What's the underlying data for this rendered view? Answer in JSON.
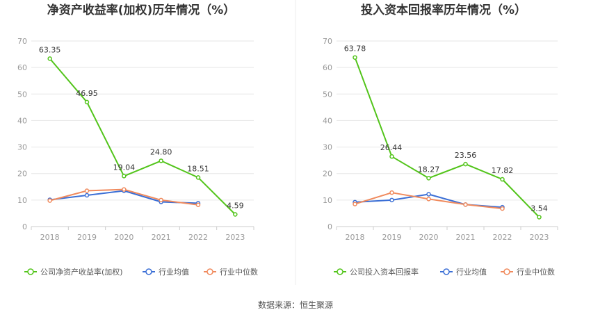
{
  "source_label": "数据来源：恒生聚源",
  "chart_data": [
    {
      "type": "line",
      "title": "净资产收益率(加权)历年情况（%）",
      "categories": [
        "2018",
        "2019",
        "2020",
        "2021",
        "2022",
        "2023"
      ],
      "ylim": [
        0,
        70
      ],
      "yticks": [
        "0",
        "10",
        "20",
        "30",
        "40",
        "50",
        "60",
        "70"
      ],
      "grid": true,
      "legend_position": "bottom",
      "series": [
        {
          "name": "公司净资产收益率(加权)",
          "color": "#52c41a",
          "values": [
            63.35,
            46.95,
            19.04,
            24.8,
            18.51,
            4.59
          ],
          "labels": [
            "63.35",
            "46.95",
            "19.04",
            "24.80",
            "18.51",
            "4.59"
          ]
        },
        {
          "name": "行业均值",
          "color": "#3b6fd6",
          "values": [
            10.1,
            11.8,
            13.5,
            9.3,
            8.8,
            null
          ]
        },
        {
          "name": "行业中位数",
          "color": "#f08a5d",
          "values": [
            9.8,
            13.5,
            14.0,
            10.0,
            8.2,
            null
          ]
        }
      ]
    },
    {
      "type": "line",
      "title": "投入资本回报率历年情况（%）",
      "categories": [
        "2018",
        "2019",
        "2020",
        "2021",
        "2022",
        "2023"
      ],
      "ylim": [
        0,
        70
      ],
      "yticks": [
        "0",
        "10",
        "20",
        "30",
        "40",
        "50",
        "60",
        "70"
      ],
      "grid": true,
      "legend_position": "bottom",
      "series": [
        {
          "name": "公司投入资本回报率",
          "color": "#52c41a",
          "values": [
            63.78,
            26.44,
            18.27,
            23.56,
            17.82,
            3.54
          ],
          "labels": [
            "63.78",
            "26.44",
            "18.27",
            "23.56",
            "17.82",
            "3.54"
          ]
        },
        {
          "name": "行业均值",
          "color": "#3b6fd6",
          "values": [
            9.2,
            10.0,
            12.2,
            8.3,
            7.3,
            null
          ]
        },
        {
          "name": "行业中位数",
          "color": "#f08a5d",
          "values": [
            8.5,
            12.8,
            10.4,
            8.3,
            6.8,
            null
          ]
        }
      ]
    }
  ]
}
